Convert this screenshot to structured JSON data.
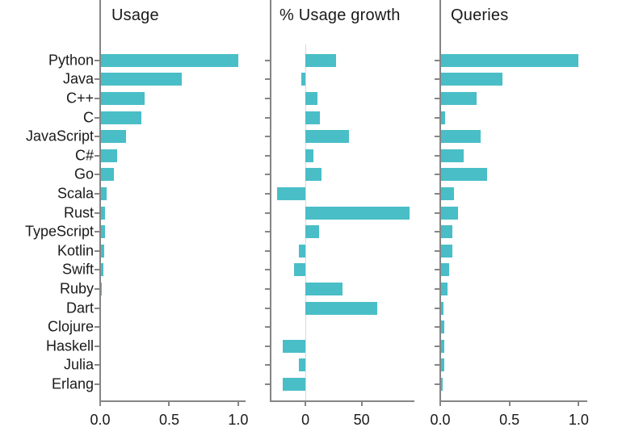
{
  "chart_data": {
    "type": "bar",
    "orientation": "horizontal",
    "title": "",
    "grid": false,
    "legend": null,
    "bar_color": "#49BEC7",
    "axis_color": "#858585",
    "zero_line_color": "#d9d9d9",
    "text_color": "#1a1a1a",
    "categories": [
      "Python",
      "Java",
      "C++",
      "C",
      "JavaScript",
      "C#",
      "Go",
      "Scala",
      "Rust",
      "TypeScript",
      "Kotlin",
      "Swift",
      "Ruby",
      "Dart",
      "Clojure",
      "Haskell",
      "Julia",
      "Erlang"
    ],
    "panels": [
      {
        "title": "Usage",
        "values": [
          1.0,
          0.59,
          0.32,
          0.3,
          0.19,
          0.12,
          0.1,
          0.047,
          0.035,
          0.035,
          0.027,
          0.023,
          0.012,
          0.006,
          0,
          0,
          0,
          0
        ],
        "xlim": [
          0,
          1.053
        ],
        "xticks": [
          0.0,
          0.5,
          1.0
        ],
        "xtick_labels": [
          "0.0",
          "0.5",
          "1.0"
        ],
        "zero_line": false
      },
      {
        "title": "% Usage growth",
        "values": [
          27,
          -4,
          11,
          13,
          39,
          7,
          14,
          -25,
          93,
          12,
          -6,
          -10,
          33,
          64,
          0,
          -20,
          -6,
          -20
        ],
        "xlim": [
          -31,
          97
        ],
        "xticks": [
          0,
          50
        ],
        "xtick_labels": [
          "0",
          "50"
        ],
        "zero_line": true
      },
      {
        "title": "Queries",
        "values": [
          1.0,
          0.45,
          0.26,
          0.035,
          0.29,
          0.17,
          0.34,
          0.1,
          0.13,
          0.09,
          0.09,
          0.065,
          0.05,
          0.022,
          0.03,
          0.03,
          0.03,
          0.015
        ],
        "xlim": [
          0,
          1.062
        ],
        "xticks": [
          0.0,
          0.5,
          1.0
        ],
        "xtick_labels": [
          "0.0",
          "0.5",
          "1.0"
        ],
        "zero_line": false
      }
    ]
  }
}
